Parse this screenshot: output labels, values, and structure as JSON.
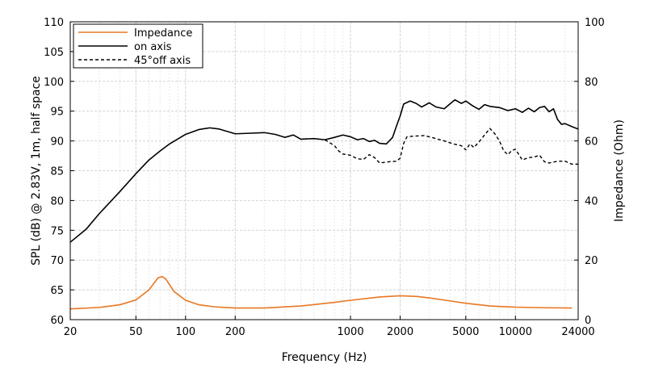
{
  "chart_data": {
    "type": "line",
    "title": "",
    "xlabel": "Frequency (Hz)",
    "ylabel_left": "SPL (dB) @ 2.83V, 1m, half space",
    "ylabel_right": "Impedance (Ohm)",
    "x_scale": "log",
    "xlim": [
      20,
      24000
    ],
    "ylim_left": [
      60,
      110
    ],
    "ylim_right": [
      0,
      100
    ],
    "x_ticks": [
      20,
      50,
      100,
      200,
      1000,
      2000,
      5000,
      10000,
      24000
    ],
    "x_tick_labels": [
      "20",
      "50",
      "100",
      "200",
      "1000",
      "2000",
      "5000",
      "10000",
      "24000"
    ],
    "y_left_ticks": [
      60,
      65,
      70,
      75,
      80,
      85,
      90,
      95,
      100,
      105,
      110
    ],
    "y_left_tick_labels": [
      "60",
      "65",
      "70",
      "75",
      "80",
      "85",
      "90",
      "95",
      "100",
      "105",
      "110"
    ],
    "y_right_ticks": [
      0,
      20,
      40,
      60,
      80,
      100
    ],
    "y_right_tick_labels": [
      "0",
      "20",
      "40",
      "60",
      "80",
      "100"
    ],
    "grid": true,
    "legend_position": "top-left",
    "series": [
      {
        "name": "Impedance",
        "axis": "right",
        "color": "#e87722",
        "style": "solid",
        "points": [
          [
            20,
            3.6
          ],
          [
            30,
            4.1
          ],
          [
            40,
            5.0
          ],
          [
            50,
            6.6
          ],
          [
            60,
            10.0
          ],
          [
            68,
            14.0
          ],
          [
            72,
            14.5
          ],
          [
            76,
            13.6
          ],
          [
            85,
            9.5
          ],
          [
            100,
            6.5
          ],
          [
            120,
            5.0
          ],
          [
            150,
            4.3
          ],
          [
            200,
            3.9
          ],
          [
            300,
            3.9
          ],
          [
            500,
            4.6
          ],
          [
            800,
            5.8
          ],
          [
            1000,
            6.5
          ],
          [
            1500,
            7.6
          ],
          [
            2000,
            8.0
          ],
          [
            2500,
            7.8
          ],
          [
            3000,
            7.3
          ],
          [
            4000,
            6.3
          ],
          [
            5000,
            5.5
          ],
          [
            7000,
            4.6
          ],
          [
            10000,
            4.2
          ],
          [
            15000,
            4.0
          ],
          [
            22000,
            3.9
          ]
        ]
      },
      {
        "name": "on axis",
        "axis": "left",
        "color": "#000000",
        "style": "solid",
        "points": [
          [
            20,
            73.0
          ],
          [
            25,
            75.2
          ],
          [
            30,
            77.8
          ],
          [
            40,
            81.5
          ],
          [
            50,
            84.5
          ],
          [
            60,
            86.8
          ],
          [
            70,
            88.3
          ],
          [
            80,
            89.5
          ],
          [
            100,
            91.1
          ],
          [
            120,
            91.9
          ],
          [
            140,
            92.2
          ],
          [
            160,
            92.0
          ],
          [
            200,
            91.2
          ],
          [
            250,
            91.3
          ],
          [
            300,
            91.4
          ],
          [
            350,
            91.1
          ],
          [
            400,
            90.6
          ],
          [
            450,
            91.0
          ],
          [
            500,
            90.3
          ],
          [
            600,
            90.4
          ],
          [
            700,
            90.2
          ],
          [
            800,
            90.6
          ],
          [
            900,
            91.0
          ],
          [
            1000,
            90.7
          ],
          [
            1100,
            90.2
          ],
          [
            1200,
            90.4
          ],
          [
            1300,
            89.9
          ],
          [
            1400,
            90.1
          ],
          [
            1500,
            89.6
          ],
          [
            1650,
            89.5
          ],
          [
            1800,
            90.6
          ],
          [
            1900,
            92.5
          ],
          [
            2000,
            94.2
          ],
          [
            2100,
            96.2
          ],
          [
            2300,
            96.7
          ],
          [
            2500,
            96.3
          ],
          [
            2700,
            95.7
          ],
          [
            3000,
            96.4
          ],
          [
            3300,
            95.7
          ],
          [
            3700,
            95.4
          ],
          [
            4000,
            96.2
          ],
          [
            4300,
            96.9
          ],
          [
            4700,
            96.3
          ],
          [
            5000,
            96.7
          ],
          [
            5500,
            95.9
          ],
          [
            6000,
            95.3
          ],
          [
            6500,
            96.1
          ],
          [
            7000,
            95.8
          ],
          [
            8000,
            95.6
          ],
          [
            9000,
            95.1
          ],
          [
            10000,
            95.4
          ],
          [
            11000,
            94.8
          ],
          [
            12000,
            95.5
          ],
          [
            13000,
            94.9
          ],
          [
            14000,
            95.6
          ],
          [
            15000,
            95.8
          ],
          [
            16000,
            94.9
          ],
          [
            17000,
            95.4
          ],
          [
            18000,
            93.6
          ],
          [
            19000,
            92.8
          ],
          [
            20000,
            92.9
          ],
          [
            22000,
            92.4
          ],
          [
            24000,
            92.0
          ]
        ]
      },
      {
        "name": "45°off axis",
        "axis": "left",
        "color": "#000000",
        "style": "dashed",
        "points": [
          [
            700,
            90.2
          ],
          [
            800,
            89.2
          ],
          [
            850,
            88.3
          ],
          [
            900,
            87.8
          ],
          [
            1000,
            87.6
          ],
          [
            1100,
            87.0
          ],
          [
            1200,
            86.9
          ],
          [
            1300,
            87.7
          ],
          [
            1400,
            87.2
          ],
          [
            1500,
            86.3
          ],
          [
            1700,
            86.5
          ],
          [
            1900,
            86.6
          ],
          [
            2000,
            87.1
          ],
          [
            2100,
            89.6
          ],
          [
            2200,
            90.7
          ],
          [
            2400,
            90.8
          ],
          [
            2800,
            90.9
          ],
          [
            3200,
            90.5
          ],
          [
            3700,
            90.0
          ],
          [
            4200,
            89.5
          ],
          [
            4700,
            89.2
          ],
          [
            5000,
            88.5
          ],
          [
            5300,
            89.5
          ],
          [
            5600,
            88.9
          ],
          [
            6000,
            89.8
          ],
          [
            6500,
            91.0
          ],
          [
            7000,
            92.1
          ],
          [
            7500,
            91.2
          ],
          [
            8000,
            90.0
          ],
          [
            8500,
            88.3
          ],
          [
            9000,
            87.7
          ],
          [
            9500,
            88.4
          ],
          [
            10000,
            88.6
          ],
          [
            10500,
            87.7
          ],
          [
            11000,
            86.8
          ],
          [
            12000,
            87.2
          ],
          [
            13000,
            87.3
          ],
          [
            14000,
            87.6
          ],
          [
            15000,
            86.5
          ],
          [
            16000,
            86.3
          ],
          [
            18000,
            86.6
          ],
          [
            20000,
            86.6
          ],
          [
            22000,
            86.1
          ],
          [
            24000,
            86.1
          ]
        ]
      }
    ]
  }
}
